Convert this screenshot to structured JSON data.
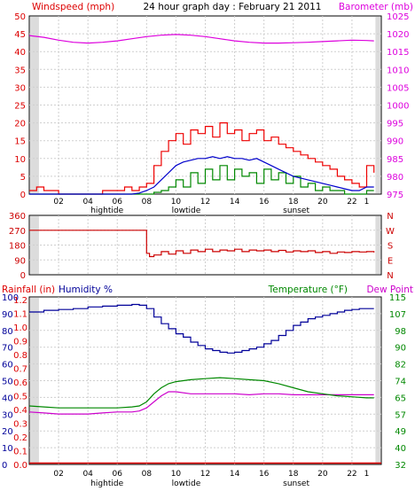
{
  "colors": {
    "wind": "#dd0000",
    "gust": "#ee0000",
    "avg_wind": "#0000cc",
    "min_wind": "#008800",
    "barometer": "#dd00dd",
    "direction": "#cc0000",
    "rain": "#dd0000",
    "humidity": "#000099",
    "temperature": "#008800",
    "dewpoint": "#cc00cc",
    "grid": "#cfcfcf",
    "night_band": "#dcdcdc"
  },
  "chart_data": [
    {
      "type": "line",
      "title": "24 hour graph day : February 21 2011",
      "left_axis_label": "Windspeed (mph)",
      "right_axis_label": "Barometer (mb)",
      "left_ticks": [
        "0",
        "5",
        "10",
        "15",
        "20",
        "25",
        "30",
        "35",
        "40",
        "45",
        "50"
      ],
      "right_ticks": [
        "975",
        "980",
        "985",
        "990",
        "995",
        "1000",
        "1005",
        "1010",
        "1015",
        "1020",
        "1025"
      ],
      "ylim_left": [
        0,
        50
      ],
      "ylim_right": [
        975,
        1025
      ],
      "x_ticks": [
        "02",
        "04",
        "06",
        "08",
        "10",
        "12",
        "14",
        "16",
        "18",
        "20",
        "22",
        "1"
      ],
      "markers": [
        "hightide",
        "lowtide",
        "sunset"
      ],
      "series": [
        {
          "key": "gust",
          "x": [
            0,
            0.5,
            1,
            1.5,
            2,
            2.5,
            3,
            3.5,
            4,
            4.5,
            5,
            5.5,
            6,
            6.5,
            7,
            7.5,
            8,
            8.5,
            9,
            9.5,
            10,
            10.5,
            11,
            11.5,
            12,
            12.5,
            13,
            13.5,
            14,
            14.5,
            15,
            15.5,
            16,
            16.5,
            17,
            17.5,
            18,
            18.5,
            19,
            19.5,
            20,
            20.5,
            21,
            21.5,
            22,
            22.5,
            23,
            23.5
          ],
          "y": [
            1,
            2,
            1,
            1,
            0,
            0,
            0,
            0,
            0,
            0,
            1,
            1,
            1,
            2,
            1,
            2,
            3,
            8,
            12,
            15,
            17,
            14,
            18,
            17,
            19,
            16,
            20,
            17,
            18,
            15,
            17,
            18,
            15,
            16,
            14,
            13,
            12,
            11,
            10,
            9,
            8,
            7,
            5,
            4,
            3,
            2,
            8,
            6
          ]
        },
        {
          "key": "avg_wind",
          "x": [
            0,
            1,
            2,
            3,
            4,
            5,
            6,
            6.5,
            7,
            7.5,
            8,
            8.5,
            9,
            9.5,
            10,
            10.5,
            11,
            11.5,
            12,
            12.5,
            13,
            13.5,
            14,
            14.5,
            15,
            15.5,
            16,
            16.5,
            17,
            17.5,
            18,
            18.5,
            19,
            19.5,
            20,
            20.5,
            21,
            21.5,
            22,
            22.5,
            23,
            23.5
          ],
          "y": [
            0,
            0,
            0,
            0,
            0,
            0,
            0,
            0,
            0,
            0.3,
            1,
            2,
            4,
            6,
            8,
            9,
            9.5,
            10,
            10,
            10.5,
            10,
            10.5,
            10,
            10,
            9.5,
            10,
            9,
            8,
            7,
            6,
            5,
            4.5,
            4,
            3.5,
            3,
            2.5,
            2,
            1.5,
            1,
            1,
            2,
            2
          ]
        },
        {
          "key": "min_wind",
          "x": [
            0,
            1,
            2,
            3,
            4,
            5,
            6,
            6.5,
            7,
            7.5,
            8,
            8.5,
            9,
            9.5,
            10,
            10.5,
            11,
            11.5,
            12,
            12.5,
            13,
            13.5,
            14,
            14.5,
            15,
            15.5,
            16,
            16.5,
            17,
            17.5,
            18,
            18.5,
            19,
            19.5,
            20,
            20.5,
            21,
            21.5,
            22,
            22.5,
            23,
            23.5
          ],
          "y": [
            0,
            0,
            0,
            0,
            0,
            0,
            0,
            0,
            0,
            0,
            0,
            0.5,
            1,
            2,
            4,
            2,
            6,
            3,
            7,
            4,
            8,
            4,
            7,
            5,
            6,
            3,
            7,
            4,
            6,
            3,
            5,
            2,
            3,
            1,
            2,
            1,
            1,
            0,
            0,
            0,
            1,
            1
          ]
        },
        {
          "key": "barometer",
          "x": [
            0,
            1,
            2,
            3,
            4,
            5,
            6,
            7,
            8,
            9,
            10,
            11,
            12,
            13,
            14,
            15,
            16,
            17,
            18,
            19,
            20,
            21,
            22,
            23,
            23.5
          ],
          "y": [
            1019.5,
            1019,
            1018.2,
            1017.6,
            1017.4,
            1017.6,
            1018,
            1018.6,
            1019.2,
            1019.6,
            1019.8,
            1019.6,
            1019.2,
            1018.6,
            1018,
            1017.6,
            1017.4,
            1017.4,
            1017.5,
            1017.6,
            1017.8,
            1018,
            1018.2,
            1018.1,
            1018
          ]
        }
      ]
    },
    {
      "type": "line",
      "left_ticks": [
        "360",
        "270",
        "180",
        "90",
        "0"
      ],
      "right_ticks": [
        "N",
        "W",
        "S",
        "E",
        "N"
      ],
      "ylim": [
        0,
        360
      ],
      "series": [
        {
          "key": "direction",
          "x": [
            0,
            1,
            2,
            3,
            4,
            5,
            6,
            7,
            7.8,
            8,
            8.2,
            8.5,
            9,
            9.5,
            10,
            10.5,
            11,
            11.5,
            12,
            12.5,
            13,
            13.5,
            14,
            14.5,
            15,
            15.5,
            16,
            16.5,
            17,
            17.5,
            18,
            18.5,
            19,
            19.5,
            20,
            20.5,
            21,
            21.5,
            22,
            22.5,
            23,
            23.5
          ],
          "y": [
            270,
            270,
            270,
            270,
            270,
            270,
            270,
            270,
            270,
            130,
            110,
            120,
            140,
            125,
            145,
            130,
            150,
            140,
            155,
            140,
            150,
            145,
            155,
            140,
            150,
            145,
            150,
            140,
            148,
            138,
            145,
            140,
            145,
            135,
            140,
            130,
            138,
            135,
            140,
            138,
            140,
            135
          ]
        }
      ]
    },
    {
      "type": "line",
      "rain_label": "Rainfall (in)",
      "humidity_label": "Humidity %",
      "temp_label": "Temperature (°F)",
      "dew_label": "Dew Point",
      "rain_ticks": [
        "1.2",
        "1.1",
        "1.0",
        "0.9",
        "0.8",
        "0.7",
        "0.6",
        "0.5",
        "0.4",
        "0.3",
        "0.2",
        "0.1",
        "0.0"
      ],
      "humidity_ticks": [
        "100",
        "90",
        "80",
        "70",
        "60",
        "50",
        "40",
        "30",
        "20",
        "10",
        "0"
      ],
      "temp_ticks": [
        "115",
        "107",
        "98",
        "90",
        "82",
        "74",
        "65",
        "57",
        "49",
        "40",
        "32"
      ],
      "ylim_humidity": [
        0,
        100
      ],
      "ylim_temp": [
        32,
        115
      ],
      "x_ticks": [
        "02",
        "04",
        "06",
        "08",
        "10",
        "12",
        "14",
        "16",
        "18",
        "20",
        "22",
        "1"
      ],
      "markers": [
        "hightide",
        "lowtide",
        "sunset"
      ],
      "series": [
        {
          "key": "humidity",
          "x": [
            0,
            1,
            2,
            3,
            4,
            5,
            6,
            7,
            7.5,
            8,
            8.5,
            9,
            9.5,
            10,
            10.5,
            11,
            11.5,
            12,
            12.5,
            13,
            13.5,
            14,
            14.5,
            15,
            15.5,
            16,
            16.5,
            17,
            17.5,
            18,
            18.5,
            19,
            19.5,
            20,
            20.5,
            21,
            21.5,
            22,
            22.5,
            23,
            23.5
          ],
          "y": [
            91,
            92,
            92.5,
            93,
            94,
            94.5,
            95,
            95.5,
            95,
            93,
            88,
            84,
            81,
            78,
            76,
            73,
            71,
            69,
            68,
            67,
            66.5,
            67,
            68,
            69,
            70,
            72,
            74,
            77,
            80,
            83,
            85,
            87,
            88,
            89,
            90,
            91,
            92,
            92.5,
            93,
            93,
            93
          ]
        },
        {
          "key": "temperature",
          "x": [
            0,
            1,
            2,
            3,
            4,
            5,
            6,
            7,
            7.5,
            8,
            8.5,
            9,
            9.5,
            10,
            10.5,
            11,
            12,
            13,
            14,
            15,
            16,
            17,
            18,
            19,
            20,
            21,
            22,
            23,
            23.5
          ],
          "y": [
            61,
            60.5,
            60,
            60,
            60,
            60,
            60,
            60.5,
            61,
            63,
            67,
            70,
            72,
            73,
            73.5,
            74,
            74.5,
            75,
            74.5,
            74,
            73.5,
            72,
            70,
            68,
            67,
            66,
            65.5,
            65,
            65
          ]
        },
        {
          "key": "dewpoint",
          "x": [
            0,
            1,
            2,
            3,
            4,
            5,
            6,
            7,
            7.5,
            8,
            8.5,
            9,
            9.5,
            10,
            11,
            12,
            13,
            14,
            15,
            16,
            17,
            18,
            19,
            20,
            21,
            22,
            23,
            23.5
          ],
          "y": [
            58,
            57.5,
            57,
            57,
            57,
            57.5,
            58,
            58,
            58.5,
            60,
            63,
            66,
            68,
            68,
            67,
            67,
            67,
            67,
            66.5,
            67,
            67,
            66.5,
            66.5,
            66.5,
            66.5,
            66.5,
            66.5,
            66.5
          ]
        },
        {
          "key": "rain",
          "x": [
            0,
            23.5
          ],
          "y": [
            0.01,
            0.01
          ]
        }
      ]
    }
  ]
}
